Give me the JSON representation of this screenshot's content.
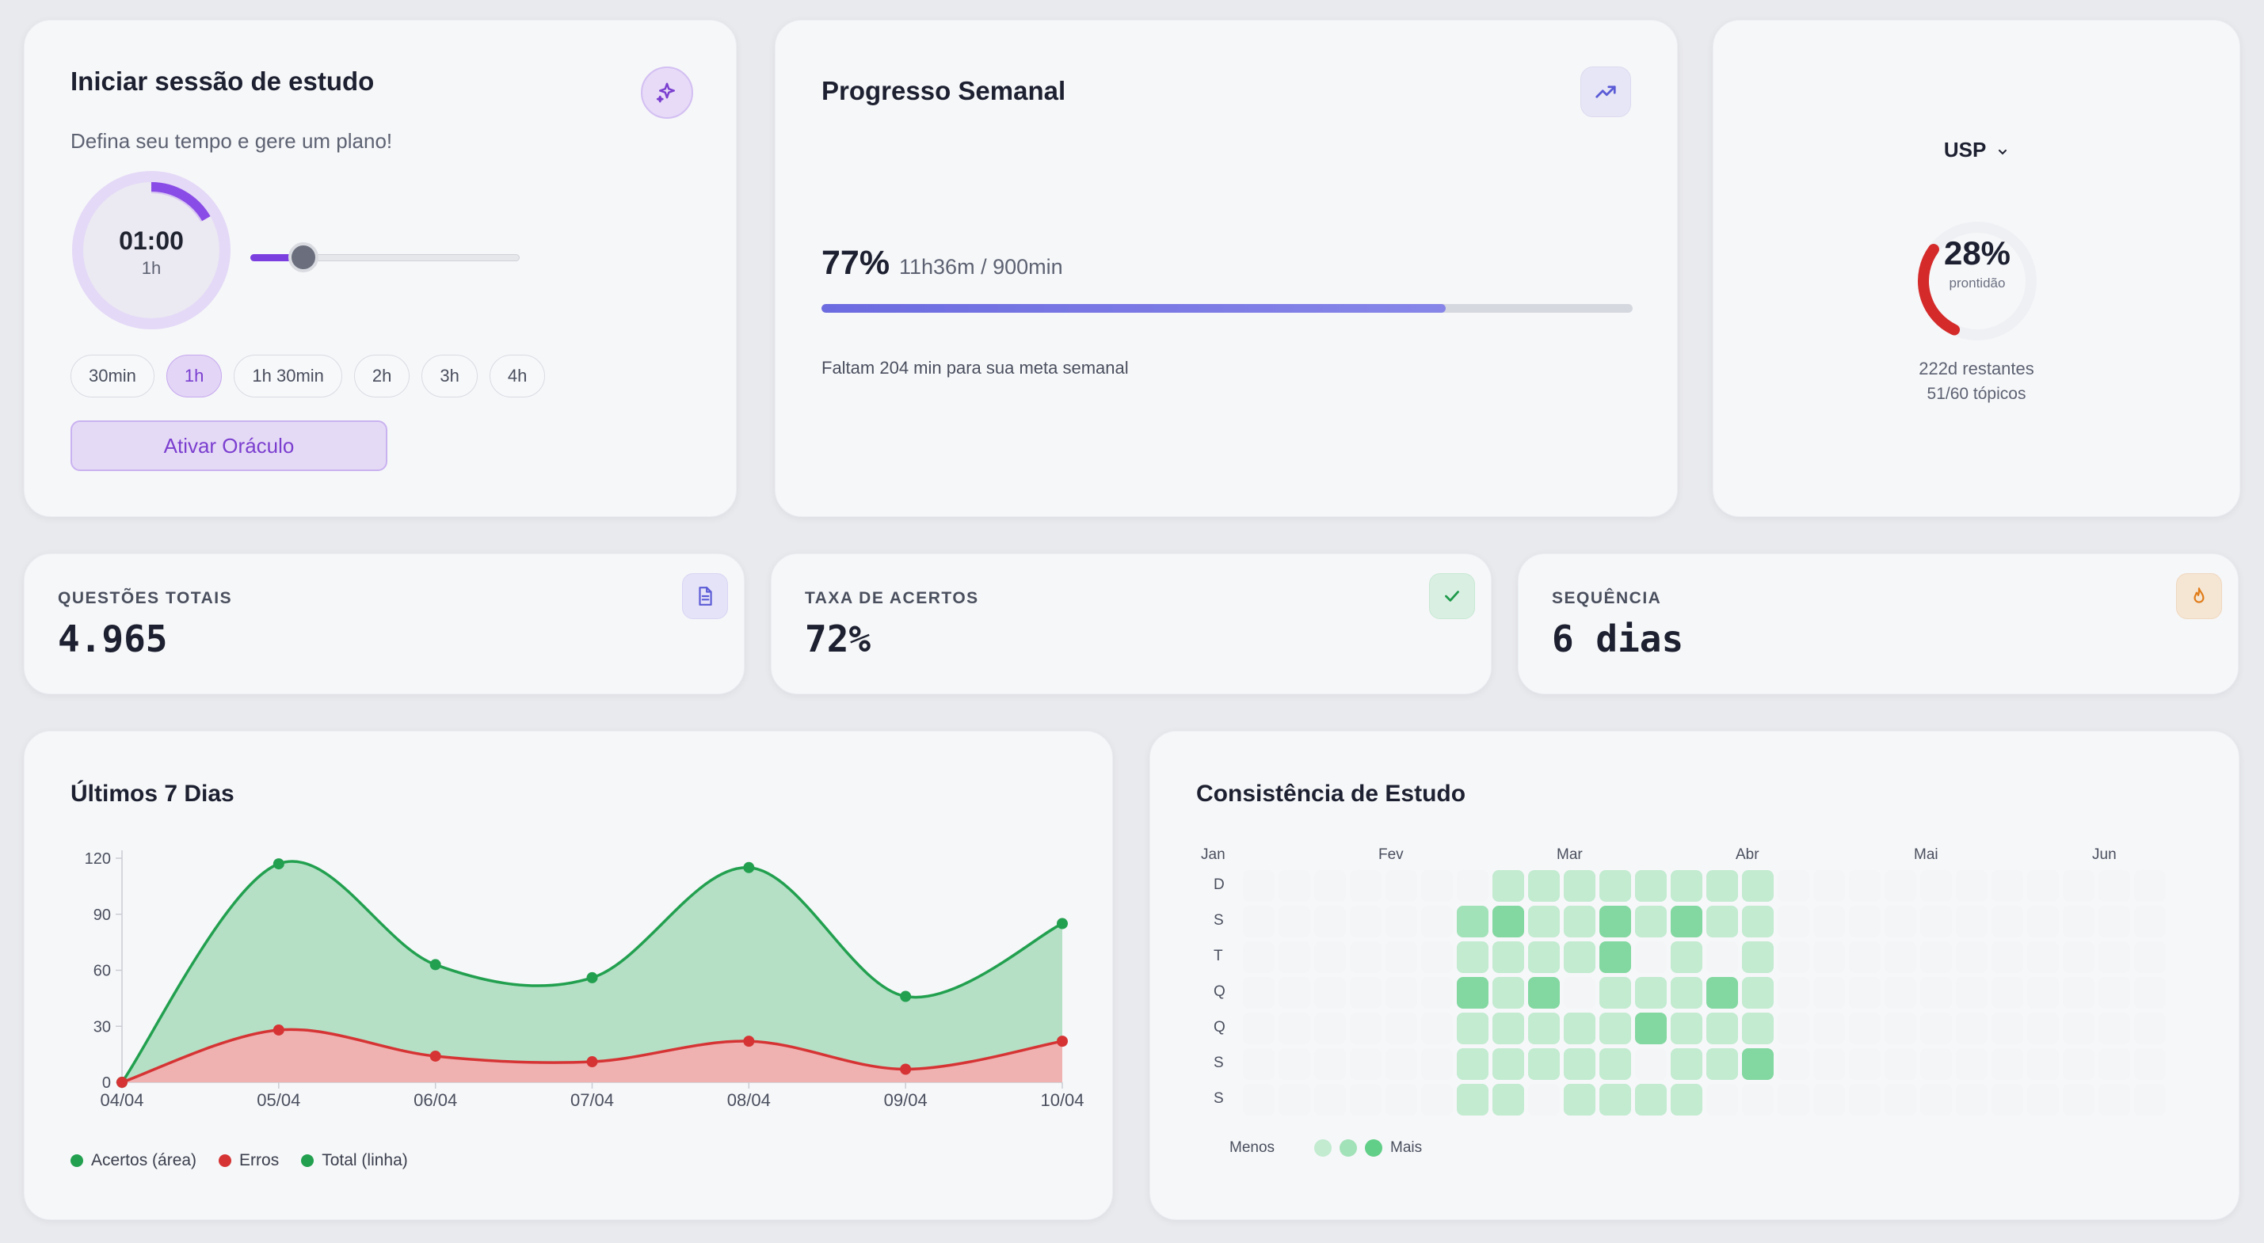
{
  "study": {
    "title": "Iniciar sessão de estudo",
    "subtitle": "Defina seu tempo e gere um plano!",
    "timer": "01:00",
    "timer_sub": "1h",
    "slider_fraction": 0.167,
    "chips": [
      "30min",
      "1h",
      "1h 30min",
      "2h",
      "3h",
      "4h"
    ],
    "active_chip": "1h",
    "button": "Ativar Oráculo",
    "icon": "sparkles-icon"
  },
  "weekly": {
    "title": "Progresso Semanal",
    "percent_label": "77%",
    "detail": "11h36m / 900min",
    "progress": 0.77,
    "note": "Faltam 204 min para sua meta semanal",
    "icon": "trending-up-icon"
  },
  "usp": {
    "selector": "USP",
    "percent_label": "28%",
    "label": "prontidão",
    "progress": 0.28,
    "remaining": "222d restantes",
    "topics": "51/60 tópicos"
  },
  "stats": [
    {
      "label": "QUESTÕES TOTAIS",
      "value": "4.965",
      "icon": "document-icon"
    },
    {
      "label": "TAXA DE ACERTOS",
      "value": "72%",
      "icon": "check-icon"
    },
    {
      "label": "SEQUÊNCIA",
      "value": "6 dias",
      "icon": "flame-icon"
    }
  ],
  "chart": {
    "title": "Últimos 7 Dias"
  },
  "chart_data": {
    "type": "area",
    "title": "Últimos 7 Dias",
    "categories": [
      "04/04",
      "05/04",
      "06/04",
      "07/04",
      "08/04",
      "09/04",
      "10/04"
    ],
    "ylim": [
      0,
      120
    ],
    "yticks": [
      0,
      30,
      60,
      90,
      120
    ],
    "series": [
      {
        "name": "Acertos (área)",
        "values": [
          0,
          89,
          49,
          45,
          93,
          39,
          63
        ],
        "color": "#22a04f",
        "fill": "#b5e0c6"
      },
      {
        "name": "Erros",
        "values": [
          0,
          28,
          14,
          11,
          22,
          7,
          22
        ],
        "color": "#d63434",
        "fill": "#f0b1b1"
      },
      {
        "name": "Total (linha)",
        "values": [
          0,
          117,
          63,
          56,
          115,
          46,
          85
        ],
        "color": "#22a04f"
      }
    ]
  },
  "heatmap": {
    "title": "Consistência de Estudo",
    "months": [
      "Jan",
      "Fev",
      "Mar",
      "Abr",
      "Mai",
      "Jun"
    ],
    "days": [
      "D",
      "S",
      "T",
      "Q",
      "Q",
      "S",
      "S"
    ],
    "legend_less": "Menos",
    "legend_more": "Mais",
    "first_active_week": 6,
    "weeks": [
      [
        0,
        2,
        1,
        3,
        1,
        1,
        1
      ],
      [
        1,
        3,
        1,
        1,
        1,
        1,
        1
      ],
      [
        1,
        1,
        1,
        3,
        1,
        1,
        0
      ],
      [
        1,
        1,
        1,
        0,
        1,
        1,
        1
      ],
      [
        1,
        3,
        3,
        1,
        1,
        1,
        1
      ],
      [
        1,
        1,
        0,
        1,
        3,
        0,
        1
      ],
      [
        1,
        3,
        1,
        1,
        1,
        1,
        1
      ],
      [
        1,
        1,
        0,
        3,
        1,
        1,
        0
      ],
      [
        1,
        1,
        1,
        1,
        1,
        3,
        0
      ]
    ]
  }
}
